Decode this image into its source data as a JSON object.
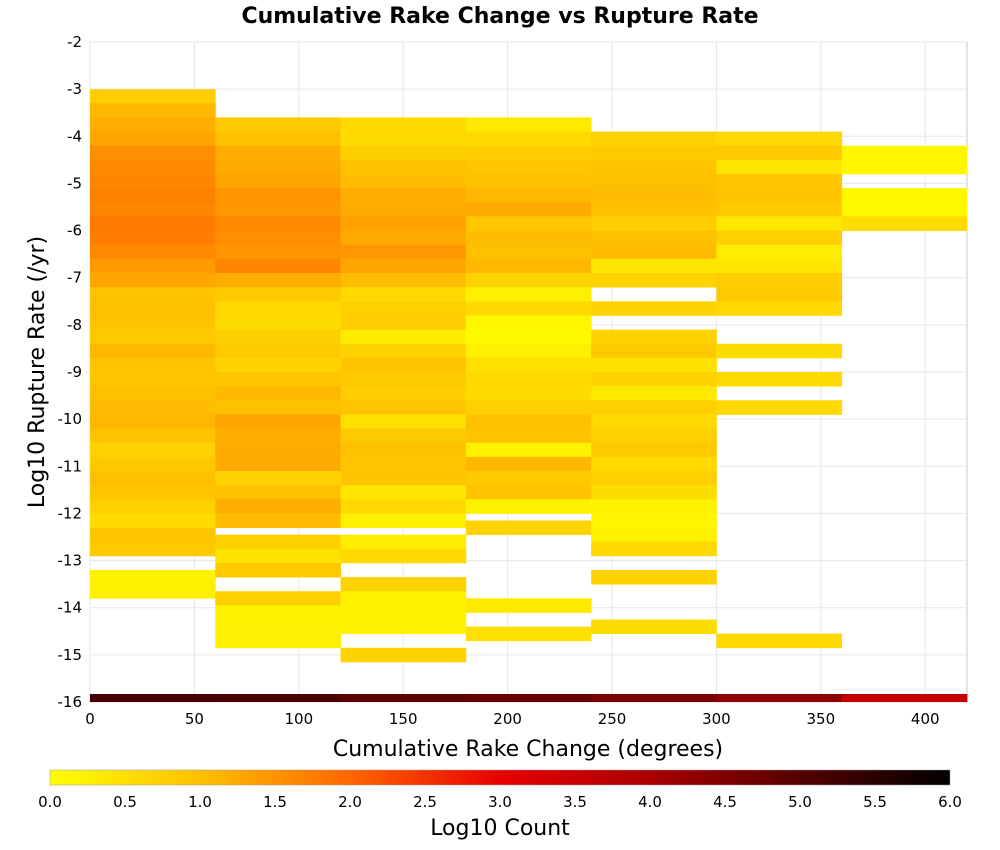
{
  "chart_data": {
    "type": "heatmap",
    "title": "Cumulative Rake Change vs Rupture Rate",
    "xlabel": "Cumulative Rake Change (degrees)",
    "ylabel": "Log10 Rupture Rate (/yr)",
    "xlim": [
      0,
      420
    ],
    "ylim": [
      -16,
      -2
    ],
    "x_ticks": [
      "0",
      "50",
      "100",
      "150",
      "200",
      "250",
      "300",
      "350",
      "400"
    ],
    "y_ticks": [
      "-2",
      "-3",
      "-4",
      "-5",
      "-6",
      "-7",
      "-8",
      "-9",
      "-10",
      "-11",
      "-12",
      "-13",
      "-14",
      "-15",
      "-16"
    ],
    "x_bin_width": 60,
    "y_bin_height": 0.3,
    "grid": true,
    "colorscale": {
      "label": "Log10 Count",
      "min": 0.0,
      "max": 6.0,
      "ticks": [
        "0.0",
        "0.5",
        "1.0",
        "1.5",
        "2.0",
        "2.5",
        "3.0",
        "3.5",
        "4.0",
        "4.5",
        "5.0",
        "5.5",
        "6.0"
      ],
      "stops": [
        {
          "v": 0.0,
          "color": "#ffff00"
        },
        {
          "v": 1.0,
          "color": "#ffc000"
        },
        {
          "v": 2.0,
          "color": "#ff6600"
        },
        {
          "v": 3.0,
          "color": "#e80000"
        },
        {
          "v": 4.0,
          "color": "#aa0000"
        },
        {
          "v": 5.0,
          "color": "#550000"
        },
        {
          "v": 6.0,
          "color": "#000000"
        }
      ]
    },
    "columns": [
      {
        "x0": 0,
        "cells": [
          [
            -3.3,
            -3.0,
            0.8
          ],
          [
            -3.6,
            -3.3,
            1.1
          ],
          [
            -3.9,
            -3.6,
            1.2
          ],
          [
            -4.2,
            -3.9,
            1.3
          ],
          [
            -4.5,
            -4.2,
            1.55
          ],
          [
            -4.8,
            -4.5,
            1.6
          ],
          [
            -5.1,
            -4.8,
            1.65
          ],
          [
            -5.4,
            -5.1,
            1.7
          ],
          [
            -5.7,
            -5.4,
            1.65
          ],
          [
            -6.0,
            -5.7,
            1.8
          ],
          [
            -6.3,
            -6.0,
            1.75
          ],
          [
            -6.6,
            -6.3,
            1.6
          ],
          [
            -6.9,
            -6.6,
            1.4
          ],
          [
            -7.2,
            -6.9,
            1.3
          ],
          [
            -7.5,
            -7.2,
            0.95
          ],
          [
            -7.8,
            -7.5,
            1.0
          ],
          [
            -8.1,
            -7.8,
            0.95
          ],
          [
            -8.4,
            -8.1,
            0.85
          ],
          [
            -8.7,
            -8.4,
            1.1
          ],
          [
            -9.0,
            -8.7,
            0.95
          ],
          [
            -9.3,
            -9.0,
            0.9
          ],
          [
            -9.6,
            -9.3,
            1.0
          ],
          [
            -9.9,
            -9.6,
            1.05
          ],
          [
            -10.2,
            -9.9,
            1.1
          ],
          [
            -10.5,
            -10.2,
            0.95
          ],
          [
            -10.8,
            -10.5,
            0.7
          ],
          [
            -11.1,
            -10.8,
            0.85
          ],
          [
            -11.4,
            -11.1,
            1.0
          ],
          [
            -11.7,
            -11.4,
            0.9
          ],
          [
            -12.0,
            -11.7,
            0.75
          ],
          [
            -12.3,
            -12.0,
            0.55
          ],
          [
            -12.6,
            -12.3,
            0.9
          ],
          [
            -12.9,
            -12.6,
            0.85
          ],
          [
            -13.5,
            -13.2,
            0.2
          ],
          [
            -13.8,
            -13.5,
            0.25
          ]
        ]
      },
      {
        "x0": 60,
        "cells": [
          [
            -3.9,
            -3.6,
            0.85
          ],
          [
            -4.2,
            -3.9,
            1.0
          ],
          [
            -4.5,
            -4.2,
            1.2
          ],
          [
            -4.8,
            -4.5,
            1.25
          ],
          [
            -5.1,
            -4.8,
            1.3
          ],
          [
            -5.4,
            -5.1,
            1.5
          ],
          [
            -5.7,
            -5.4,
            1.45
          ],
          [
            -6.0,
            -5.7,
            1.6
          ],
          [
            -6.3,
            -6.0,
            1.55
          ],
          [
            -6.6,
            -6.3,
            1.5
          ],
          [
            -6.9,
            -6.6,
            1.65
          ],
          [
            -7.2,
            -6.9,
            1.2
          ],
          [
            -7.5,
            -7.2,
            0.85
          ],
          [
            -7.8,
            -7.5,
            0.6
          ],
          [
            -8.1,
            -7.8,
            0.55
          ],
          [
            -8.4,
            -8.1,
            0.75
          ],
          [
            -8.7,
            -8.4,
            0.85
          ],
          [
            -9.0,
            -8.7,
            0.7
          ],
          [
            -9.3,
            -9.0,
            0.9
          ],
          [
            -9.6,
            -9.3,
            1.1
          ],
          [
            -9.9,
            -9.6,
            1.0
          ],
          [
            -10.2,
            -9.9,
            1.3
          ],
          [
            -10.5,
            -10.2,
            1.2
          ],
          [
            -10.8,
            -10.5,
            1.25
          ],
          [
            -11.1,
            -10.8,
            1.25
          ],
          [
            -11.4,
            -11.1,
            0.7
          ],
          [
            -11.7,
            -11.4,
            1.0
          ],
          [
            -12.0,
            -11.7,
            1.2
          ],
          [
            -12.3,
            -12.0,
            1.05
          ],
          [
            -12.75,
            -12.45,
            0.75
          ],
          [
            -13.05,
            -12.75,
            0.45
          ],
          [
            -13.35,
            -13.05,
            0.85
          ],
          [
            -13.95,
            -13.65,
            0.75
          ],
          [
            -14.25,
            -13.95,
            0.2
          ],
          [
            -14.55,
            -14.25,
            0.25
          ],
          [
            -14.85,
            -14.55,
            0.25
          ]
        ]
      },
      {
        "x0": 120,
        "cells": [
          [
            -3.9,
            -3.6,
            0.6
          ],
          [
            -4.2,
            -3.9,
            0.55
          ],
          [
            -4.5,
            -4.2,
            0.75
          ],
          [
            -4.8,
            -4.5,
            1.0
          ],
          [
            -5.1,
            -4.8,
            1.05
          ],
          [
            -5.4,
            -5.1,
            1.2
          ],
          [
            -5.7,
            -5.4,
            1.25
          ],
          [
            -6.0,
            -5.7,
            1.35
          ],
          [
            -6.3,
            -6.0,
            1.25
          ],
          [
            -6.6,
            -6.3,
            1.45
          ],
          [
            -6.9,
            -6.6,
            1.3
          ],
          [
            -7.2,
            -6.9,
            1.05
          ],
          [
            -7.5,
            -7.2,
            0.6
          ],
          [
            -7.8,
            -7.5,
            0.75
          ],
          [
            -8.1,
            -7.8,
            0.8
          ],
          [
            -8.4,
            -8.1,
            0.3
          ],
          [
            -8.7,
            -8.4,
            0.7
          ],
          [
            -9.0,
            -8.7,
            0.95
          ],
          [
            -9.3,
            -9.0,
            0.85
          ],
          [
            -9.6,
            -9.3,
            0.8
          ],
          [
            -9.9,
            -9.6,
            0.95
          ],
          [
            -10.2,
            -9.9,
            0.5
          ],
          [
            -10.5,
            -10.2,
            0.85
          ],
          [
            -10.8,
            -10.5,
            1.0
          ],
          [
            -11.1,
            -10.8,
            0.9
          ],
          [
            -11.4,
            -11.1,
            0.95
          ],
          [
            -11.7,
            -11.4,
            0.4
          ],
          [
            -12.0,
            -11.7,
            0.6
          ],
          [
            -12.3,
            -12.0,
            0.25
          ],
          [
            -12.75,
            -12.45,
            0.3
          ],
          [
            -13.05,
            -12.75,
            0.6
          ],
          [
            -13.65,
            -13.35,
            0.7
          ],
          [
            -13.95,
            -13.65,
            0.2
          ],
          [
            -14.25,
            -13.95,
            0.2
          ],
          [
            -14.55,
            -14.25,
            0.2
          ],
          [
            -15.15,
            -14.85,
            0.7
          ]
        ]
      },
      {
        "x0": 180,
        "cells": [
          [
            -3.9,
            -3.6,
            0.35
          ],
          [
            -4.2,
            -3.9,
            0.6
          ],
          [
            -4.5,
            -4.2,
            0.8
          ],
          [
            -4.8,
            -4.5,
            0.9
          ],
          [
            -5.1,
            -4.8,
            1.0
          ],
          [
            -5.4,
            -5.1,
            1.1
          ],
          [
            -5.7,
            -5.4,
            1.25
          ],
          [
            -6.0,
            -5.7,
            0.9
          ],
          [
            -6.3,
            -6.0,
            1.05
          ],
          [
            -6.6,
            -6.3,
            1.0
          ],
          [
            -6.9,
            -6.6,
            1.1
          ],
          [
            -7.2,
            -6.9,
            0.7
          ],
          [
            -7.5,
            -7.2,
            0.25
          ],
          [
            -7.8,
            -7.5,
            0.6
          ],
          [
            -8.1,
            -7.8,
            0.15
          ],
          [
            -8.4,
            -8.1,
            0.1
          ],
          [
            -8.7,
            -8.4,
            0.25
          ],
          [
            -9.0,
            -8.7,
            0.5
          ],
          [
            -9.3,
            -9.0,
            0.6
          ],
          [
            -9.6,
            -9.3,
            0.55
          ],
          [
            -9.9,
            -9.6,
            0.75
          ],
          [
            -10.2,
            -9.9,
            1.0
          ],
          [
            -10.5,
            -10.2,
            0.95
          ],
          [
            -10.8,
            -10.5,
            0.2
          ],
          [
            -11.1,
            -10.8,
            1.1
          ],
          [
            -11.4,
            -11.1,
            0.85
          ],
          [
            -11.7,
            -11.4,
            0.95
          ],
          [
            -12.0,
            -11.7,
            0.2
          ],
          [
            -12.45,
            -12.15,
            0.7
          ],
          [
            -14.1,
            -13.8,
            0.35
          ],
          [
            -14.7,
            -14.4,
            0.5
          ]
        ]
      },
      {
        "x0": 240,
        "cells": [
          [
            -4.2,
            -3.9,
            0.75
          ],
          [
            -4.5,
            -4.2,
            0.85
          ],
          [
            -4.8,
            -4.5,
            0.95
          ],
          [
            -5.1,
            -4.8,
            1.0
          ],
          [
            -5.4,
            -5.1,
            1.05
          ],
          [
            -5.7,
            -5.4,
            1.0
          ],
          [
            -6.0,
            -5.7,
            0.8
          ],
          [
            -6.3,
            -6.0,
            1.0
          ],
          [
            -6.6,
            -6.3,
            1.05
          ],
          [
            -6.9,
            -6.6,
            0.4
          ],
          [
            -7.2,
            -6.9,
            0.7
          ],
          [
            -7.8,
            -7.5,
            0.7
          ],
          [
            -8.4,
            -8.1,
            0.7
          ],
          [
            -8.7,
            -8.4,
            0.85
          ],
          [
            -9.0,
            -8.7,
            0.5
          ],
          [
            -9.3,
            -9.0,
            0.7
          ],
          [
            -9.6,
            -9.3,
            0.35
          ],
          [
            -9.9,
            -9.6,
            0.75
          ],
          [
            -10.2,
            -9.9,
            0.6
          ],
          [
            -10.5,
            -10.2,
            0.75
          ],
          [
            -10.8,
            -10.5,
            0.85
          ],
          [
            -11.1,
            -10.8,
            0.6
          ],
          [
            -11.4,
            -11.1,
            0.75
          ],
          [
            -11.7,
            -11.4,
            0.55
          ],
          [
            -12.0,
            -11.7,
            0.2
          ],
          [
            -12.3,
            -12.0,
            0.15
          ],
          [
            -12.6,
            -12.3,
            0.2
          ],
          [
            -12.9,
            -12.6,
            0.6
          ],
          [
            -13.5,
            -13.2,
            0.7
          ],
          [
            -14.55,
            -14.25,
            0.55
          ]
        ]
      },
      {
        "x0": 300,
        "cells": [
          [
            -4.2,
            -3.9,
            0.6
          ],
          [
            -4.5,
            -4.2,
            0.85
          ],
          [
            -4.8,
            -4.5,
            0.4
          ],
          [
            -5.1,
            -4.8,
            0.9
          ],
          [
            -5.4,
            -5.1,
            0.95
          ],
          [
            -5.7,
            -5.4,
            0.85
          ],
          [
            -6.0,
            -5.7,
            0.4
          ],
          [
            -6.3,
            -6.0,
            0.75
          ],
          [
            -6.6,
            -6.3,
            0.3
          ],
          [
            -6.9,
            -6.6,
            0.4
          ],
          [
            -7.2,
            -6.9,
            0.8
          ],
          [
            -7.5,
            -7.2,
            0.85
          ],
          [
            -7.8,
            -7.5,
            0.6
          ],
          [
            -8.7,
            -8.4,
            0.55
          ],
          [
            -9.3,
            -9.0,
            0.55
          ],
          [
            -9.9,
            -9.6,
            0.6
          ],
          [
            -14.85,
            -14.55,
            0.6
          ]
        ]
      },
      {
        "x0": 360,
        "cells": [
          [
            -4.8,
            -4.2,
            0.15
          ],
          [
            -5.4,
            -5.1,
            0.15
          ],
          [
            -5.7,
            -5.4,
            0.1
          ],
          [
            -6.0,
            -5.7,
            0.55
          ]
        ]
      }
    ],
    "bottom_strip": [
      {
        "x0": 0,
        "value": 5.2
      },
      {
        "x0": 60,
        "value": 5.1
      },
      {
        "x0": 120,
        "value": 4.9
      },
      {
        "x0": 180,
        "value": 4.8
      },
      {
        "x0": 240,
        "value": 4.6
      },
      {
        "x0": 300,
        "value": 4.3
      },
      {
        "x0": 360,
        "value": 3.6
      }
    ]
  }
}
